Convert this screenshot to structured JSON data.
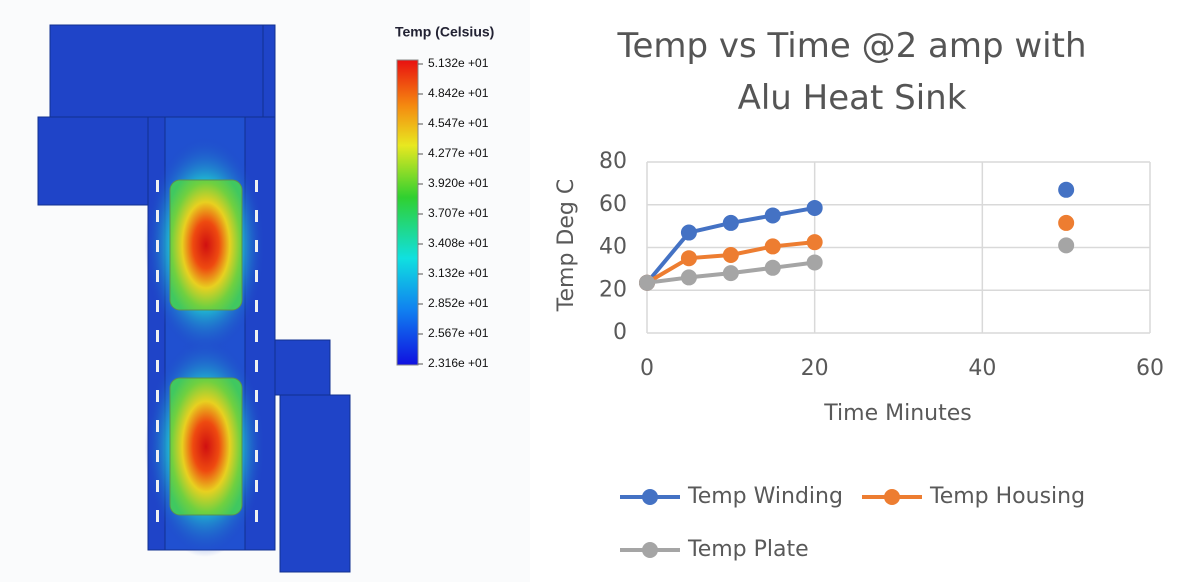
{
  "simulation": {
    "legend_title": "Temp (Celsius)",
    "legend_labels": [
      "5.132e +01",
      "4.842e +01",
      "4.547e +01",
      "4.277e +01",
      "3.920e +01",
      "3.707e +01",
      "3.408e +01",
      "3.132e +01",
      "2.852e +01",
      "2.567e +01",
      "2.316e +01"
    ]
  },
  "chart_data": {
    "type": "line",
    "title": "Temp vs Time @2 amp with Alu Heat Sink",
    "x_label": "Time Minutes",
    "y_label": "Temp Deg C",
    "x": [
      0,
      5,
      10,
      15,
      20,
      null,
      50
    ],
    "series": [
      {
        "name": "Temp Winding",
        "color": "#4472c4",
        "values": [
          23.5,
          47,
          51.5,
          55,
          58.5,
          null,
          67
        ]
      },
      {
        "name": "Temp Housing",
        "color": "#ed7d31",
        "values": [
          23.5,
          35,
          36.5,
          40.5,
          42.5,
          null,
          51.5
        ]
      },
      {
        "name": "Temp Plate",
        "color": "#a5a5a5",
        "values": [
          23.5,
          26,
          28,
          30.5,
          33,
          null,
          41
        ]
      }
    ],
    "xlim": [
      0,
      60
    ],
    "xticks": [
      0,
      20,
      40,
      60
    ],
    "ylim": [
      0,
      80
    ],
    "yticks": [
      0,
      20,
      40,
      60,
      80
    ],
    "grid": true,
    "legend": "bottom"
  }
}
